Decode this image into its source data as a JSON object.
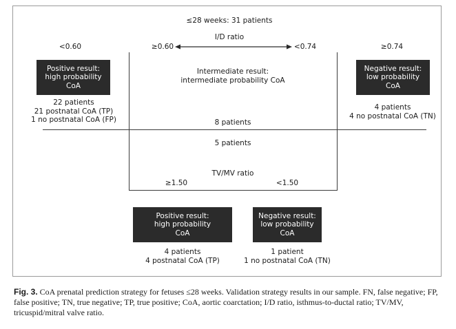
{
  "top_label": "≤28 weeks: 31 patients",
  "id_ratio": {
    "label": "I/D ratio",
    "lt060": "<0.60",
    "ge060": "≥0.60",
    "lt074": "<0.74",
    "ge074": "≥0.74"
  },
  "box_positive_left": [
    "Positive result:",
    "high probability",
    "CoA"
  ],
  "box_negative_right": [
    "Negative result:",
    "low probability",
    "CoA"
  ],
  "intermediate": [
    "Intermediate result:",
    "intermediate probability CoA"
  ],
  "left_stats": [
    "22 patients",
    "21 postnatal CoA (TP)",
    "1 no postnatal CoA (FP)"
  ],
  "right_stats": [
    "4 patients",
    "4 no postnatal CoA (TN)"
  ],
  "mid_8": "8 patients",
  "mid_5": "5 patients",
  "tvmv": {
    "label": "TV/MV ratio",
    "ge150": "≥1.50",
    "lt150": "<1.50"
  },
  "box_positive_bottom": [
    "Positive result:",
    "high probability",
    "CoA"
  ],
  "box_negative_bottom": [
    "Negative result:",
    "low probability",
    "CoA"
  ],
  "bottom_left_stats": [
    "4 patients",
    "4 postnatal CoA (TP)"
  ],
  "bottom_right_stats": [
    "1 patient",
    "1 no postnatal CoA (TN)"
  ],
  "caption": {
    "label": "Fig. 3.",
    "text": "CoA prenatal prediction strategy for fetuses ≤28 weeks. Validation strategy results in our sample. FN, false negative; FP, false positive; TN, true negative; TP, true positive; CoA, aortic coarctation; I/D ratio, isthmus-to-ductal ratio; TV/MV, tricuspid/mitral valve ratio."
  }
}
